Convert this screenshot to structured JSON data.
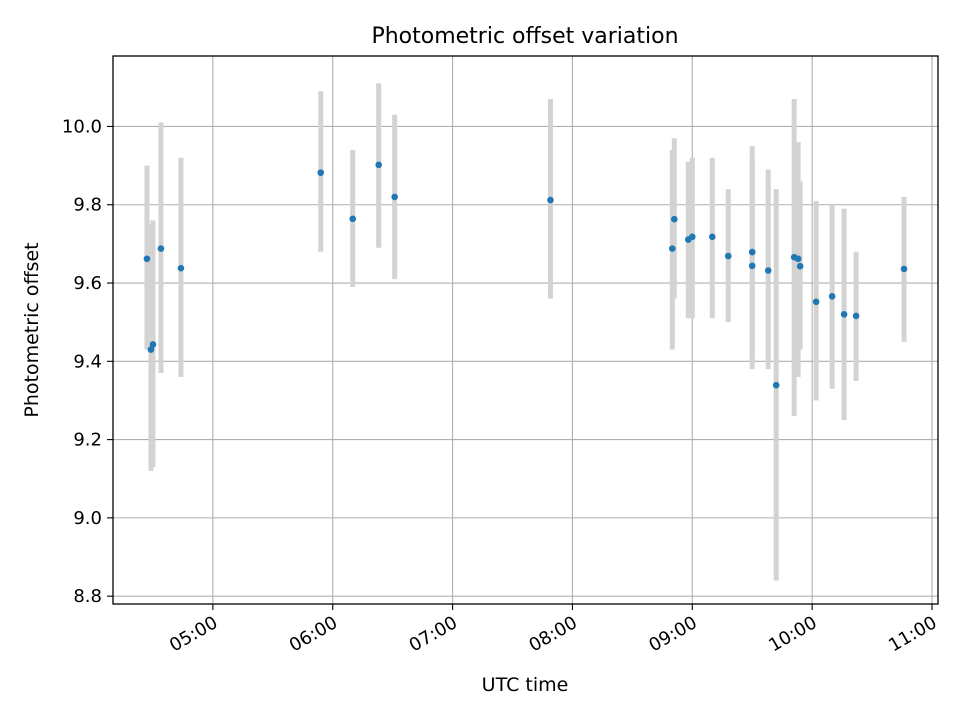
{
  "chart_data": {
    "type": "scatter",
    "title": "Photometric offset variation",
    "xlabel": "UTC time",
    "ylabel": "Photometric offset",
    "x_unit": "UTC hh:mm",
    "xlim": [
      "04:10",
      "11:03"
    ],
    "ylim": [
      8.78,
      10.18
    ],
    "xticks": [
      "05:00",
      "06:00",
      "07:00",
      "08:00",
      "09:00",
      "10:00",
      "11:00"
    ],
    "yticks": [
      8.8,
      9.0,
      9.2,
      9.4,
      9.6,
      9.8,
      10.0
    ],
    "ytick_labels": [
      "8.8",
      "9.0",
      "9.2",
      "9.4",
      "9.6",
      "9.8",
      "10.0"
    ],
    "grid": true,
    "point_color": "#1f77b4",
    "errorbar_color": "#d3d3d3",
    "points": [
      {
        "x": "04:27",
        "y": 9.662,
        "low": 9.43,
        "high": 9.9
      },
      {
        "x": "04:29",
        "y": 9.43,
        "low": 9.12,
        "high": 9.75
      },
      {
        "x": "04:30",
        "y": 9.443,
        "low": 9.13,
        "high": 9.76
      },
      {
        "x": "04:34",
        "y": 9.688,
        "low": 9.37,
        "high": 10.01
      },
      {
        "x": "04:44",
        "y": 9.638,
        "low": 9.36,
        "high": 9.92
      },
      {
        "x": "05:54",
        "y": 9.882,
        "low": 9.68,
        "high": 10.09
      },
      {
        "x": "06:10",
        "y": 9.764,
        "low": 9.59,
        "high": 9.94
      },
      {
        "x": "06:23",
        "y": 9.902,
        "low": 9.69,
        "high": 10.11
      },
      {
        "x": "06:31",
        "y": 9.82,
        "low": 9.61,
        "high": 10.03
      },
      {
        "x": "07:49",
        "y": 9.812,
        "low": 9.56,
        "high": 10.07
      },
      {
        "x": "08:50",
        "y": 9.688,
        "low": 9.43,
        "high": 9.94
      },
      {
        "x": "08:51",
        "y": 9.763,
        "low": 9.56,
        "high": 9.97
      },
      {
        "x": "08:58",
        "y": 9.711,
        "low": 9.51,
        "high": 9.91
      },
      {
        "x": "09:00",
        "y": 9.718,
        "low": 9.51,
        "high": 9.92
      },
      {
        "x": "09:10",
        "y": 9.718,
        "low": 9.51,
        "high": 9.92
      },
      {
        "x": "09:18",
        "y": 9.669,
        "low": 9.5,
        "high": 9.84
      },
      {
        "x": "09:30",
        "y": 9.679,
        "low": 9.41,
        "high": 9.95
      },
      {
        "x": "09:30",
        "y": 9.644,
        "low": 9.38,
        "high": 9.91
      },
      {
        "x": "09:38",
        "y": 9.632,
        "low": 9.38,
        "high": 9.89
      },
      {
        "x": "09:42",
        "y": 9.339,
        "low": 8.84,
        "high": 9.84
      },
      {
        "x": "09:51",
        "y": 9.666,
        "low": 9.26,
        "high": 10.07
      },
      {
        "x": "09:53",
        "y": 9.662,
        "low": 9.36,
        "high": 9.96
      },
      {
        "x": "09:54",
        "y": 9.643,
        "low": 9.43,
        "high": 9.86
      },
      {
        "x": "10:02",
        "y": 9.552,
        "low": 9.3,
        "high": 9.81
      },
      {
        "x": "10:10",
        "y": 9.566,
        "low": 9.33,
        "high": 9.8
      },
      {
        "x": "10:16",
        "y": 9.52,
        "low": 9.25,
        "high": 9.79
      },
      {
        "x": "10:22",
        "y": 9.516,
        "low": 9.35,
        "high": 9.68
      },
      {
        "x": "10:46",
        "y": 9.636,
        "low": 9.45,
        "high": 9.82
      }
    ]
  }
}
